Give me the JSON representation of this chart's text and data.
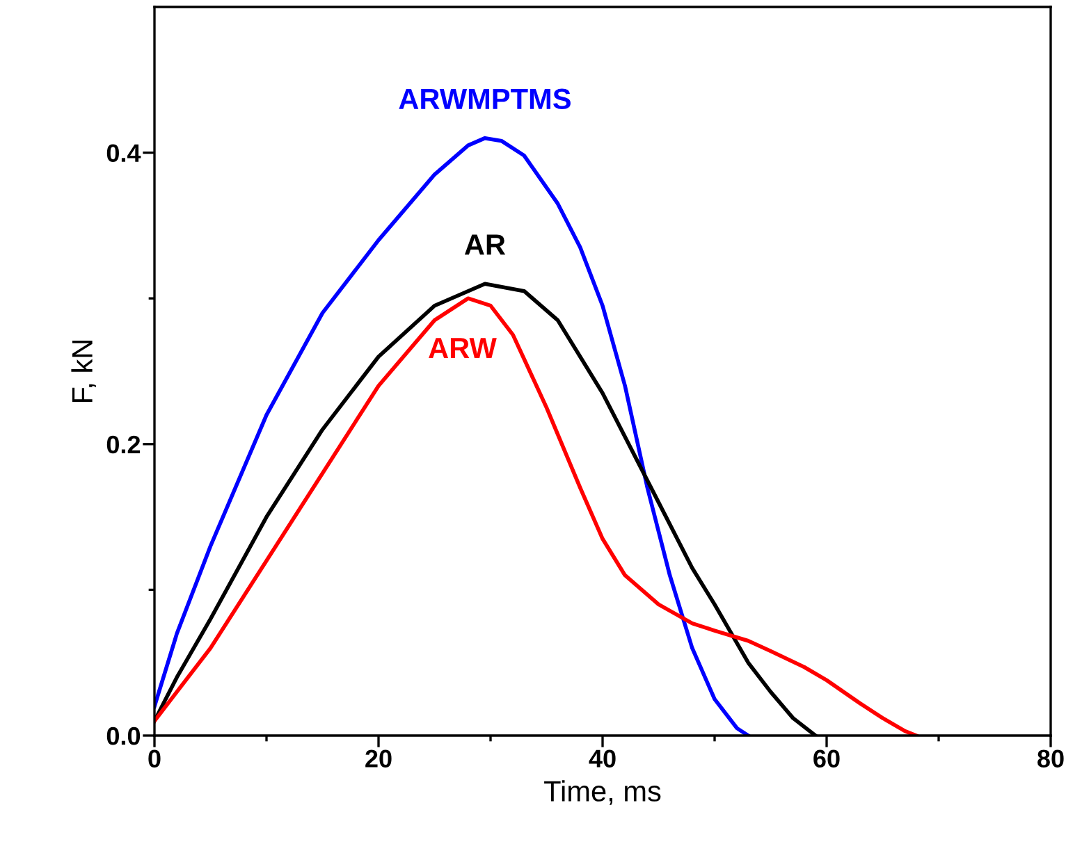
{
  "chart_data": {
    "type": "line",
    "xlabel": "Time, ms",
    "ylabel": "F, kN",
    "xlim": [
      0,
      80
    ],
    "ylim": [
      0,
      0.5
    ],
    "xticks": [
      0,
      {
        "value": 10,
        "label": null
      },
      20,
      {
        "value": 30,
        "label": null
      },
      40,
      {
        "value": 50,
        "label": null
      },
      60,
      {
        "value": 70,
        "label": null
      },
      80
    ],
    "yticks": [
      "0.0",
      {
        "value": 0.1,
        "label": null
      },
      0.2,
      {
        "value": 0.3,
        "label": null
      },
      0.4
    ],
    "grid": false,
    "legend": false,
    "marker": "none",
    "line_style": "solid",
    "series": [
      {
        "name": "ARWMPTMS",
        "color": "#0000ff",
        "x": [
          0,
          2,
          5,
          10,
          15,
          20,
          25,
          28,
          29.5,
          31,
          33,
          36,
          38,
          40,
          42,
          44,
          46,
          48,
          50,
          52,
          53
        ],
        "values": [
          0.02,
          0.07,
          0.13,
          0.22,
          0.29,
          0.34,
          0.385,
          0.405,
          0.41,
          0.408,
          0.398,
          0.365,
          0.335,
          0.295,
          0.24,
          0.17,
          0.11,
          0.06,
          0.025,
          0.005,
          0
        ]
      },
      {
        "name": "AR",
        "color": "#000000",
        "x": [
          0,
          2,
          5,
          10,
          15,
          20,
          25,
          29.5,
          33,
          36,
          40,
          42,
          45,
          48,
          50,
          53,
          55,
          57,
          59
        ],
        "values": [
          0.01,
          0.04,
          0.08,
          0.15,
          0.21,
          0.26,
          0.295,
          0.31,
          0.305,
          0.285,
          0.235,
          0.205,
          0.16,
          0.115,
          0.09,
          0.05,
          0.03,
          0.012,
          0
        ]
      },
      {
        "name": "ARW",
        "color": "#ff0000",
        "x": [
          0,
          2,
          5,
          10,
          15,
          20,
          25,
          28,
          30,
          32,
          35,
          38,
          40,
          42,
          45,
          48,
          50,
          53,
          55,
          58,
          60,
          63,
          65,
          67,
          68
        ],
        "values": [
          0.01,
          0.03,
          0.06,
          0.12,
          0.18,
          0.24,
          0.285,
          0.3,
          0.295,
          0.275,
          0.225,
          0.17,
          0.135,
          0.11,
          0.09,
          0.077,
          0.072,
          0.065,
          0.058,
          0.047,
          0.038,
          0.022,
          0.012,
          0.003,
          0
        ]
      }
    ]
  }
}
